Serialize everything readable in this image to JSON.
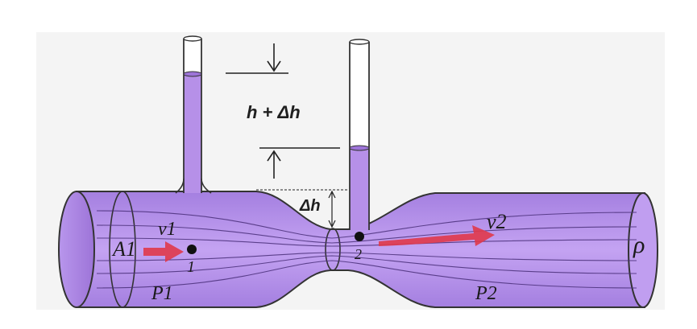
{
  "diagram": {
    "title": "Venturi tube with two piezometer tubes",
    "labels": {
      "height_difference": "h + Δh",
      "delta_h": "Δh",
      "area_1": "A1",
      "velocity_1": "v1",
      "velocity_2": "v2",
      "pressure_1": "P1",
      "pressure_2": "P2",
      "point_1": "1",
      "point_2": "2",
      "density": "ρ"
    },
    "colors": {
      "fluid": "#b690e8",
      "fluid_dark": "#8e62cc",
      "outline": "#333333",
      "arrow": "#e0384a",
      "background": "#ffffff",
      "panel": "#f3f3f3"
    }
  }
}
